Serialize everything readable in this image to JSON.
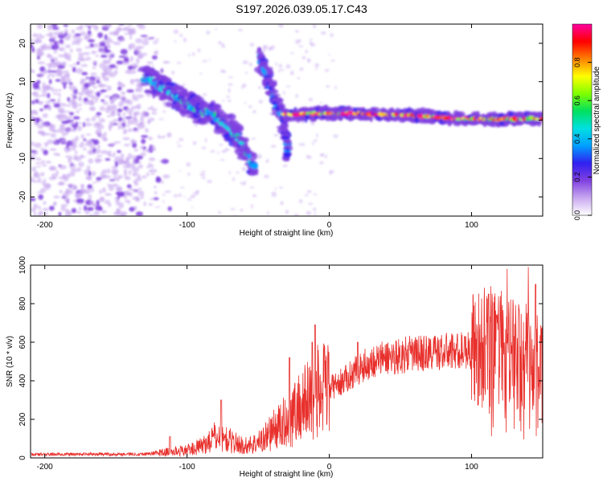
{
  "title": "S197.2026.039.05.17.C43",
  "colors": {
    "line": "#e8302c",
    "frame": "#000000",
    "background": "#ffffff"
  },
  "chart_data": [
    {
      "type": "heatmap",
      "name": "spectrogram",
      "xlabel": "Height of straight line (km)",
      "ylabel": "Frequency (Hz)",
      "xlim": [
        -210,
        150
      ],
      "ylim": [
        -25,
        25
      ],
      "xticks": [
        -200,
        -100,
        0,
        100
      ],
      "yticks": [
        -20,
        -10,
        0,
        10,
        20
      ],
      "xtick_labels": [
        "-200",
        "-100",
        "0",
        "100"
      ],
      "ytick_labels": [
        "-20",
        "-10",
        "0",
        "10",
        "20"
      ],
      "colorbar": {
        "label": "Normalized spectral amplitude",
        "range": [
          0,
          1
        ],
        "ticks": [
          0.0,
          0.2,
          0.4,
          0.6,
          0.8
        ],
        "tick_labels": [
          "0.0",
          "0.2",
          "0.4",
          "0.6",
          "0.8"
        ],
        "stops": [
          "#ffffff",
          "#c8a8f0",
          "#8040e0",
          "#3020f0",
          "#00a0ff",
          "#00e0e0",
          "#00e060",
          "#80ff00",
          "#ffff00",
          "#ff8000",
          "#ff0000",
          "#ff00a0"
        ]
      },
      "features": [
        {
          "name": "noise-field",
          "x_range": [
            -210,
            -120
          ],
          "y_range": [
            -25,
            25
          ],
          "level": 0.15
        },
        {
          "name": "descending-track-main",
          "points": [
            [
              -130,
              11
            ],
            [
              -115,
              8
            ],
            [
              -95,
              3
            ],
            [
              -80,
              1
            ],
            [
              -68,
              -3
            ],
            [
              -58,
              -8
            ],
            [
              -52,
              -13
            ]
          ],
          "level": 0.5
        },
        {
          "name": "descending-track-secondary",
          "points": [
            [
              -50,
              16
            ],
            [
              -45,
              12
            ],
            [
              -38,
              5
            ],
            [
              -32,
              0
            ],
            [
              -30,
              -6
            ],
            [
              -30,
              -9
            ]
          ],
          "level": 0.4
        },
        {
          "name": "steady-line",
          "points": [
            [
              -30,
              1.5
            ],
            [
              0,
              1.8
            ],
            [
              30,
              1.6
            ],
            [
              60,
              1.2
            ],
            [
              90,
              0.4
            ],
            [
              120,
              0.2
            ],
            [
              150,
              0.5
            ]
          ],
          "level": 0.95
        }
      ]
    },
    {
      "type": "line",
      "name": "snr",
      "xlabel": "Height of straight line (km)",
      "ylabel": "SNR (10 * v/v)",
      "xlim": [
        -210,
        150
      ],
      "ylim": [
        0,
        1000
      ],
      "xticks": [
        -200,
        -100,
        0,
        100
      ],
      "yticks": [
        0,
        200,
        400,
        600,
        800,
        1000
      ],
      "xtick_labels": [
        "-200",
        "-100",
        "0",
        "100"
      ],
      "ytick_labels": [
        "0",
        "200",
        "400",
        "600",
        "800",
        "1000"
      ],
      "envelope": {
        "x": [
          -210,
          -130,
          -115,
          -100,
          -90,
          -80,
          -70,
          -60,
          -50,
          -40,
          -30,
          -20,
          -10,
          0,
          10,
          20,
          30,
          40,
          60,
          80,
          100,
          110,
          120,
          130,
          140,
          150
        ],
        "y": [
          18,
          20,
          30,
          40,
          60,
          110,
          90,
          60,
          80,
          140,
          190,
          270,
          330,
          360,
          400,
          460,
          500,
          520,
          540,
          550,
          560,
          580,
          570,
          560,
          520,
          500
        ]
      },
      "peaks": [
        {
          "x": -112,
          "y": 110
        },
        {
          "x": -76,
          "y": 300
        },
        {
          "x": -28,
          "y": 520
        },
        {
          "x": -12,
          "y": 600
        },
        {
          "x": -10,
          "y": 690
        },
        {
          "x": 20,
          "y": 600
        },
        {
          "x": 95,
          "y": 630
        },
        {
          "x": 112,
          "y": 850
        },
        {
          "x": 125,
          "y": 980
        },
        {
          "x": 140,
          "y": 990
        },
        {
          "x": 145,
          "y": 900
        }
      ]
    }
  ]
}
